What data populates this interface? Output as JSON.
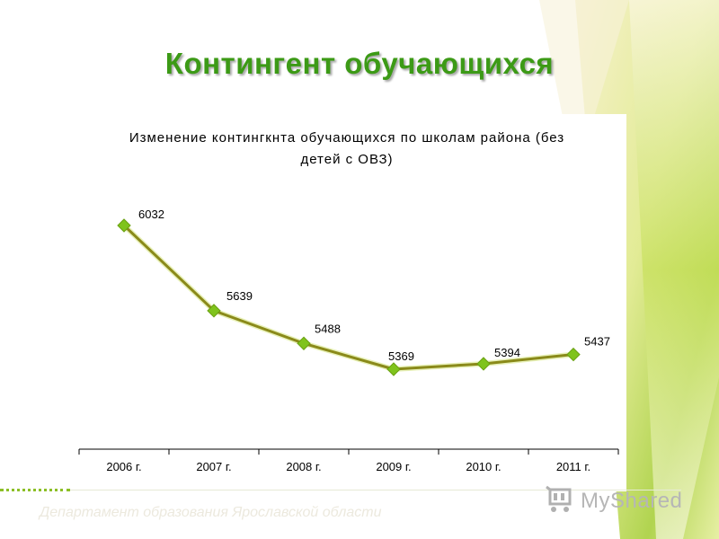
{
  "slide": {
    "title": "Контингент обучающихся",
    "footer": "Департамент образования Ярославской области",
    "watermark": "MyShared"
  },
  "colors": {
    "title": "#3c9a16",
    "line": "#8a8a1a",
    "marker": "#7fc31c",
    "accent_light": "#d9e88a"
  },
  "chart_data": {
    "type": "line",
    "title_lines": [
      "Изменение контингкнта обучающихся по школам района (без",
      "детей с ОВЗ)"
    ],
    "categories": [
      "2006 г.",
      "2007 г.",
      "2008 г.",
      "2009 г.",
      "2010 г.",
      "2011 г."
    ],
    "values": [
      6032,
      5639,
      5488,
      5369,
      5394,
      5437
    ],
    "data_labels": [
      "6032",
      "5639",
      "5488",
      "5369",
      "5394",
      "5437"
    ],
    "xlabel": "",
    "ylabel": "",
    "ylim": [
      5000,
      6150
    ],
    "grid": false,
    "legend": "none"
  }
}
